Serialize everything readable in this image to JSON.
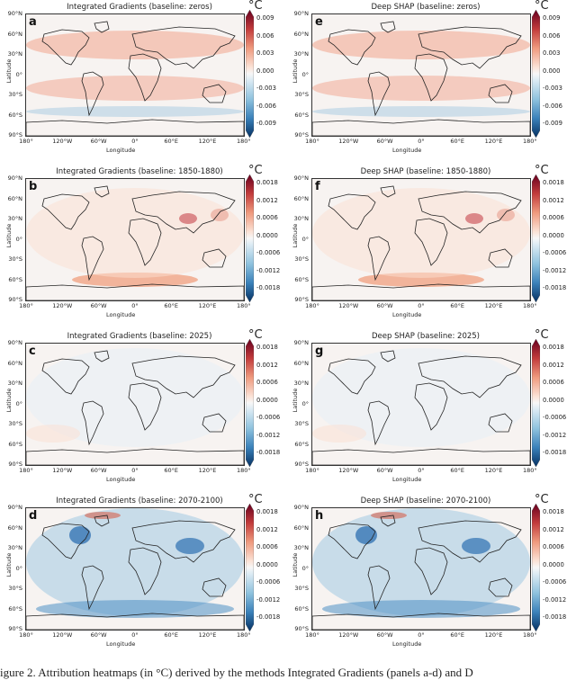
{
  "units": "°C",
  "lat_ticks": [
    "90°N",
    "60°N",
    "30°N",
    "0°",
    "30°S",
    "60°S",
    "90°S"
  ],
  "lon_ticks": [
    "180°",
    "120°W",
    "60°W",
    "0°",
    "60°E",
    "120°E",
    "180°"
  ],
  "axis_labels": {
    "x": "Longitude",
    "y": "Latitude"
  },
  "colorbar_ticks": {
    "zeros": [
      "0.009",
      "0.006",
      "0.003",
      "0.000",
      "-0.003",
      "-0.006",
      "-0.009"
    ],
    "fine": [
      "0.0018",
      "0.0012",
      "0.0006",
      "0.0000",
      "-0.0006",
      "-0.0012",
      "-0.0018"
    ]
  },
  "panels": [
    {
      "letter": "a",
      "title": "Integrated Gradients (baseline: zeros)",
      "scale": "zeros"
    },
    {
      "letter": "e",
      "title": "Deep SHAP (baseline: zeros)",
      "scale": "zeros"
    },
    {
      "letter": "b",
      "title": "Integrated Gradients (baseline: 1850-1880)",
      "scale": "fine"
    },
    {
      "letter": "f",
      "title": "Deep SHAP (baseline: 1850-1880)",
      "scale": "fine"
    },
    {
      "letter": "c",
      "title": "Integrated Gradients (baseline: 2025)",
      "scale": "fine"
    },
    {
      "letter": "g",
      "title": "Deep SHAP (baseline: 2025)",
      "scale": "fine"
    },
    {
      "letter": "d",
      "title": "Integrated Gradients (baseline: 2070-2100)",
      "scale": "fine"
    },
    {
      "letter": "h",
      "title": "Deep SHAP (baseline: 2070-2100)",
      "scale": "fine"
    }
  ],
  "caption": "igure 2. Attribution heatmaps (in °C) derived by the methods Integrated Gradients (panels a-d) and D"
}
